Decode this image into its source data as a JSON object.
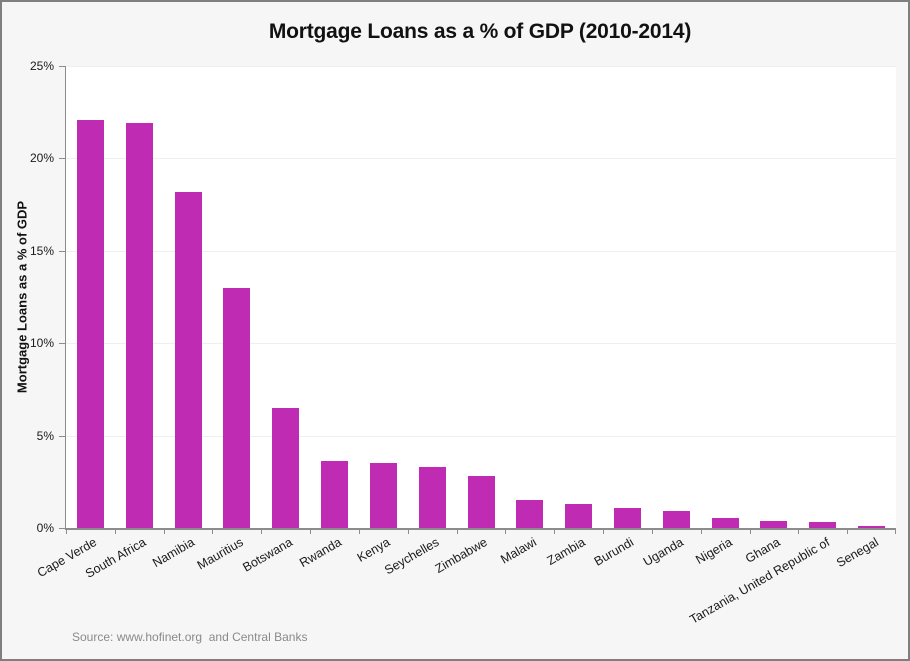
{
  "chart_data": {
    "type": "bar",
    "title": "Mortgage Loans as a % of GDP (2010-2014)",
    "xlabel": "",
    "ylabel": "Mortgage Loans as a % of GDP",
    "categories": [
      "Cape Verde",
      "South Africa",
      "Namibia",
      "Mauritius",
      "Botswana",
      "Rwanda",
      "Kenya",
      "Seychelles",
      "Zimbabwe",
      "Malawi",
      "Zambia",
      "Burundi",
      "Uganda",
      "Nigeria",
      "Ghana",
      "Tanzania, United Republic of",
      "Senegal"
    ],
    "values": [
      22.1,
      21.9,
      18.2,
      13.0,
      6.5,
      3.6,
      3.5,
      3.3,
      2.8,
      1.5,
      1.3,
      1.1,
      0.9,
      0.55,
      0.4,
      0.35,
      0.1
    ],
    "ylim": [
      0,
      25
    ],
    "ytick_step": 5,
    "ytick_labels": [
      "0%",
      "5%",
      "10%",
      "15%",
      "20%",
      "25%"
    ],
    "grid": "horizontal",
    "legend": "none"
  },
  "source_note": "Source: www.hofinet.org  and Central Banks",
  "colors": {
    "bar": "#bf2cb3",
    "background": "#f6f6f6",
    "plot_background": "#ffffff",
    "frame_border": "#7f7f7f",
    "gridline": "#efefef",
    "axis": "#8c8c8c",
    "text": "#1a1a1a",
    "source_text": "#8a8a8a"
  }
}
